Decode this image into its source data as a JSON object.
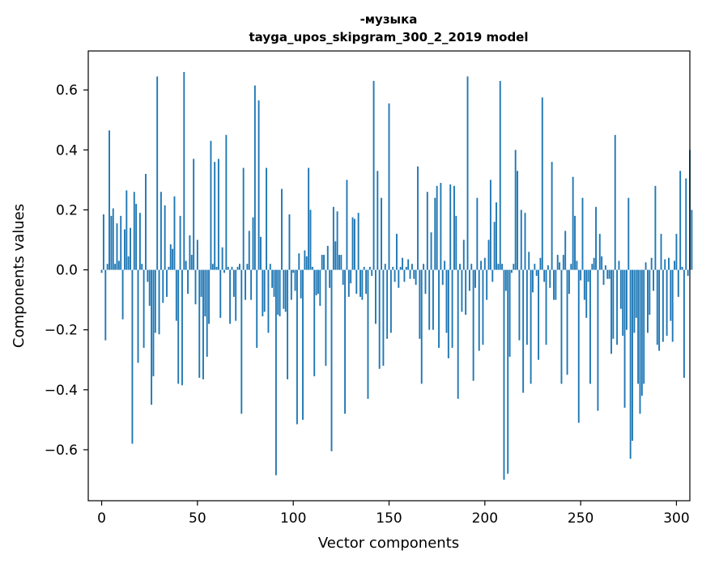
{
  "chart_data": {
    "type": "bar",
    "title": "-музыка",
    "subtitle": "tayga_upos_skipgram_300_2_2019 model",
    "xlabel": "Vector components",
    "ylabel": "Components values",
    "xlim": [
      -7,
      307
    ],
    "ylim": [
      -0.77,
      0.73
    ],
    "x_ticks": [
      0,
      50,
      100,
      150,
      200,
      250,
      300
    ],
    "x_tick_labels": [
      "0",
      "50",
      "100",
      "150",
      "200",
      "250",
      "300"
    ],
    "y_ticks": [
      -0.6,
      -0.4,
      -0.2,
      0.0,
      0.2,
      0.4,
      0.6
    ],
    "y_tick_labels": [
      "−0.6",
      "−0.4",
      "−0.2",
      "0.0",
      "0.2",
      "0.4",
      "0.6"
    ],
    "grid": false,
    "legend": "none",
    "color": "#1f77b4",
    "values": [
      -0.01,
      0.185,
      -0.235,
      0.02,
      0.465,
      0.18,
      0.205,
      0.02,
      0.155,
      0.03,
      0.18,
      -0.165,
      0.135,
      0.265,
      0.045,
      0.14,
      -0.58,
      0.26,
      0.22,
      -0.31,
      0.19,
      0.02,
      -0.26,
      0.32,
      -0.04,
      -0.12,
      -0.45,
      -0.355,
      -0.21,
      0.645,
      -0.215,
      0.26,
      -0.11,
      0.215,
      -0.09,
      0.01,
      0.085,
      0.07,
      0.245,
      -0.17,
      -0.38,
      0.18,
      -0.385,
      0.66,
      0.03,
      -0.08,
      0.115,
      0.05,
      0.37,
      -0.115,
      0.1,
      -0.36,
      -0.09,
      -0.365,
      -0.155,
      -0.29,
      -0.18,
      0.43,
      0.02,
      0.36,
      0.01,
      0.37,
      -0.16,
      0.075,
      -0.01,
      0.45,
      0.01,
      -0.18,
      0.01,
      -0.09,
      -0.17,
      0.01,
      0.02,
      -0.48,
      0.34,
      -0.1,
      0.02,
      0.13,
      -0.1,
      0.175,
      0.615,
      -0.26,
      0.565,
      0.11,
      -0.155,
      -0.14,
      0.34,
      -0.21,
      0.02,
      -0.06,
      -0.09,
      -0.685,
      -0.15,
      -0.155,
      0.27,
      -0.13,
      -0.14,
      -0.365,
      0.185,
      -0.1,
      -0.01,
      -0.07,
      -0.515,
      0.055,
      -0.095,
      -0.5,
      0.065,
      0.045,
      0.34,
      0.2,
      0.01,
      -0.355,
      -0.085,
      -0.08,
      -0.12,
      0.05,
      0.05,
      -0.32,
      0.08,
      -0.06,
      -0.605,
      0.21,
      0.095,
      0.195,
      0.05,
      0.05,
      -0.05,
      -0.48,
      0.3,
      -0.09,
      -0.045,
      0.175,
      0.17,
      -0.08,
      0.19,
      -0.09,
      -0.1,
      0.01,
      -0.08,
      -0.43,
      0.01,
      -0.02,
      0.63,
      -0.18,
      0.33,
      -0.33,
      0.24,
      -0.32,
      0.02,
      -0.23,
      0.555,
      -0.21,
      0.01,
      -0.04,
      0.12,
      -0.06,
      0.01,
      0.04,
      -0.04,
      0.01,
      0.035,
      -0.03,
      0.02,
      -0.03,
      -0.05,
      0.345,
      -0.23,
      -0.38,
      0.02,
      -0.08,
      0.26,
      -0.2,
      0.125,
      -0.2,
      0.24,
      0.28,
      -0.26,
      0.29,
      -0.05,
      0.03,
      -0.21,
      -0.295,
      0.285,
      -0.26,
      0.28,
      0.18,
      -0.43,
      0.02,
      -0.14,
      0.1,
      -0.15,
      0.645,
      -0.07,
      0.02,
      -0.37,
      -0.06,
      0.24,
      -0.27,
      0.03,
      -0.25,
      0.04,
      -0.1,
      0.1,
      0.3,
      -0.04,
      0.16,
      0.225,
      0.02,
      0.63,
      0.02,
      -0.7,
      -0.07,
      -0.68,
      -0.29,
      -0.01,
      0.02,
      0.4,
      0.33,
      -0.235,
      0.2,
      -0.41,
      0.19,
      -0.25,
      0.06,
      -0.38,
      -0.075,
      0.02,
      -0.02,
      -0.3,
      0.04,
      0.575,
      -0.04,
      -0.25,
      0.015,
      -0.06,
      0.36,
      -0.1,
      -0.1,
      0.05,
      0.025,
      -0.38,
      0.05,
      0.13,
      -0.35,
      -0.08,
      0.02,
      0.31,
      0.18,
      0.03,
      -0.51,
      -0.035,
      0.24,
      -0.1,
      -0.16,
      -0.04,
      -0.38,
      0.02,
      0.04,
      0.21,
      -0.47,
      0.12,
      0.045,
      -0.05,
      0.015,
      -0.03,
      -0.03,
      -0.28,
      -0.23,
      0.45,
      -0.25,
      0.03,
      -0.13,
      -0.22,
      -0.46,
      -0.2,
      0.24,
      -0.63,
      -0.57,
      -0.21,
      -0.16,
      -0.38,
      -0.48,
      -0.42,
      -0.38,
      0.025,
      -0.21,
      -0.15,
      0.04,
      -0.07,
      0.28,
      -0.25,
      -0.27,
      0.12,
      -0.24,
      0.035,
      -0.22,
      0.04,
      -0.17,
      -0.24,
      0.03,
      0.12,
      -0.09,
      0.33,
      0.01,
      -0.36,
      0.305,
      -0.02,
      0.4,
      0.2
    ]
  }
}
